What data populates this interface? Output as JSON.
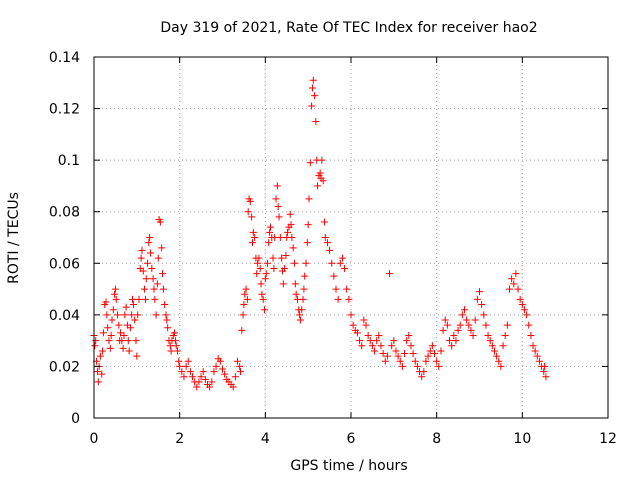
{
  "chart_data": {
    "type": "scatter",
    "title": "Day 319 of 2021, Rate Of TEC Index for receiver hao2",
    "xlabel": "GPS time / hours",
    "ylabel": "ROTI / TECUs",
    "xlim": [
      0,
      12
    ],
    "ylim": [
      0,
      0.14
    ],
    "x_ticks": [
      "0",
      "2",
      "4",
      "6",
      "8",
      "10",
      "12"
    ],
    "y_ticks": [
      "0",
      "0.02",
      "0.04",
      "0.06",
      "0.08",
      "0.1",
      "0.12",
      "0.14"
    ],
    "grid": true,
    "marker": "+",
    "marker_color": "#ff0000",
    "series": [
      {
        "x": [
          0.0,
          0.02,
          0.04,
          0.06,
          0.08,
          0.1,
          0.12,
          0.15,
          0.18,
          0.2,
          0.22,
          0.25,
          0.28,
          0.3,
          0.32,
          0.35,
          0.38,
          0.4,
          0.42,
          0.45,
          0.48,
          0.5,
          0.52,
          0.55,
          0.58,
          0.6,
          0.62,
          0.65,
          0.68,
          0.7,
          0.72,
          0.75,
          0.78,
          0.8,
          0.82,
          0.85,
          0.88,
          0.9,
          0.92,
          0.95,
          0.98,
          1.0,
          1.02,
          1.05,
          1.08,
          1.1,
          1.12,
          1.15,
          1.18,
          1.2,
          1.22,
          1.25,
          1.28,
          1.3,
          1.32,
          1.35,
          1.38,
          1.4,
          1.42,
          1.45,
          1.48,
          1.5,
          1.52,
          1.55,
          1.58,
          1.6,
          1.62,
          1.65,
          1.68,
          1.7,
          1.72,
          1.75,
          1.78,
          1.8,
          1.82,
          1.85,
          1.88,
          1.9,
          1.92,
          1.95,
          1.98,
          2.0,
          2.05,
          2.1,
          2.15,
          2.2,
          2.25,
          2.3,
          2.35,
          2.4,
          2.45,
          2.5,
          2.55,
          2.6,
          2.65,
          2.7,
          2.75,
          2.8,
          2.85,
          2.9,
          2.95,
          3.0,
          3.05,
          3.1,
          3.15,
          3.2,
          3.25,
          3.3,
          3.35,
          3.4,
          3.42,
          3.45,
          3.48,
          3.5,
          3.52,
          3.55,
          3.58,
          3.6,
          3.62,
          3.65,
          3.68,
          3.7,
          3.72,
          3.75,
          3.78,
          3.8,
          3.82,
          3.85,
          3.88,
          3.9,
          3.92,
          3.95,
          3.98,
          4.0,
          4.02,
          4.05,
          4.08,
          4.1,
          4.12,
          4.15,
          4.18,
          4.2,
          4.22,
          4.25,
          4.28,
          4.3,
          4.32,
          4.35,
          4.38,
          4.4,
          4.42,
          4.45,
          4.48,
          4.5,
          4.52,
          4.55,
          4.58,
          4.6,
          4.62,
          4.65,
          4.68,
          4.7,
          4.72,
          4.75,
          4.78,
          4.8,
          4.82,
          4.85,
          4.88,
          4.9,
          4.92,
          4.95,
          4.98,
          5.0,
          5.02,
          5.05,
          5.08,
          5.1,
          5.12,
          5.15,
          5.18,
          5.2,
          5.22,
          5.25,
          5.28,
          5.3,
          5.32,
          5.35,
          5.38,
          5.4,
          5.45,
          5.5,
          5.55,
          5.6,
          5.65,
          5.7,
          5.75,
          5.8,
          5.85,
          5.9,
          5.95,
          6.0,
          6.05,
          6.1,
          6.15,
          6.2,
          6.25,
          6.3,
          6.35,
          6.4,
          6.45,
          6.5,
          6.55,
          6.6,
          6.65,
          6.7,
          6.75,
          6.8,
          6.85,
          6.9,
          6.95,
          7.0,
          7.05,
          7.1,
          7.15,
          7.2,
          7.25,
          7.3,
          7.35,
          7.4,
          7.45,
          7.5,
          7.55,
          7.6,
          7.65,
          7.7,
          7.75,
          7.8,
          7.85,
          7.9,
          7.95,
          8.0,
          8.05,
          8.1,
          8.15,
          8.2,
          8.25,
          8.3,
          8.35,
          8.4,
          8.45,
          8.5,
          8.55,
          8.6,
          8.65,
          8.7,
          8.75,
          8.8,
          8.85,
          8.9,
          8.95,
          9.0,
          9.05,
          9.1,
          9.15,
          9.2,
          9.25,
          9.3,
          9.35,
          9.4,
          9.45,
          9.5,
          9.55,
          9.6,
          9.65,
          9.7,
          9.75,
          9.8,
          9.85,
          9.9,
          9.95,
          10.0,
          10.05,
          10.1,
          10.15,
          10.2,
          10.25,
          10.3,
          10.35,
          10.4,
          10.45,
          10.5,
          10.52,
          10.55
        ],
        "y": [
          0.032,
          0.028,
          0.03,
          0.022,
          0.018,
          0.014,
          0.02,
          0.024,
          0.017,
          0.026,
          0.033,
          0.044,
          0.045,
          0.04,
          0.035,
          0.03,
          0.027,
          0.032,
          0.038,
          0.042,
          0.048,
          0.05,
          0.046,
          0.04,
          0.036,
          0.03,
          0.033,
          0.03,
          0.027,
          0.032,
          0.04,
          0.043,
          0.036,
          0.03,
          0.026,
          0.035,
          0.04,
          0.046,
          0.044,
          0.038,
          0.03,
          0.024,
          0.04,
          0.046,
          0.058,
          0.062,
          0.065,
          0.057,
          0.05,
          0.046,
          0.054,
          0.06,
          0.068,
          0.07,
          0.064,
          0.058,
          0.054,
          0.05,
          0.046,
          0.04,
          0.052,
          0.062,
          0.077,
          0.076,
          0.066,
          0.056,
          0.05,
          0.044,
          0.04,
          0.038,
          0.035,
          0.03,
          0.028,
          0.026,
          0.03,
          0.032,
          0.033,
          0.03,
          0.028,
          0.026,
          0.022,
          0.02,
          0.018,
          0.016,
          0.02,
          0.022,
          0.018,
          0.016,
          0.014,
          0.012,
          0.014,
          0.016,
          0.018,
          0.015,
          0.013,
          0.012,
          0.014,
          0.018,
          0.02,
          0.023,
          0.022,
          0.019,
          0.017,
          0.015,
          0.014,
          0.013,
          0.012,
          0.016,
          0.022,
          0.02,
          0.018,
          0.034,
          0.04,
          0.044,
          0.048,
          0.05,
          0.046,
          0.08,
          0.085,
          0.084,
          0.078,
          0.068,
          0.072,
          0.07,
          0.062,
          0.056,
          0.06,
          0.062,
          0.058,
          0.052,
          0.048,
          0.046,
          0.042,
          0.054,
          0.056,
          0.06,
          0.068,
          0.072,
          0.074,
          0.07,
          0.062,
          0.058,
          0.07,
          0.085,
          0.09,
          0.082,
          0.078,
          0.07,
          0.062,
          0.057,
          0.052,
          0.058,
          0.063,
          0.07,
          0.072,
          0.074,
          0.079,
          0.075,
          0.07,
          0.066,
          0.06,
          0.052,
          0.048,
          0.046,
          0.042,
          0.04,
          0.038,
          0.042,
          0.046,
          0.05,
          0.055,
          0.06,
          0.068,
          0.075,
          0.085,
          0.099,
          0.121,
          0.128,
          0.131,
          0.125,
          0.115,
          0.1,
          0.09,
          0.094,
          0.095,
          0.093,
          0.1,
          0.092,
          0.076,
          0.07,
          0.068,
          0.065,
          0.06,
          0.055,
          0.05,
          0.046,
          0.06,
          0.062,
          0.058,
          0.05,
          0.046,
          0.04,
          0.036,
          0.034,
          0.033,
          0.03,
          0.028,
          0.038,
          0.036,
          0.032,
          0.03,
          0.028,
          0.026,
          0.03,
          0.032,
          0.028,
          0.025,
          0.022,
          0.024,
          0.056,
          0.028,
          0.03,
          0.026,
          0.024,
          0.022,
          0.02,
          0.025,
          0.03,
          0.032,
          0.028,
          0.025,
          0.022,
          0.02,
          0.018,
          0.016,
          0.018,
          0.022,
          0.024,
          0.026,
          0.028,
          0.025,
          0.022,
          0.02,
          0.026,
          0.034,
          0.038,
          0.036,
          0.03,
          0.028,
          0.032,
          0.03,
          0.034,
          0.036,
          0.04,
          0.042,
          0.038,
          0.036,
          0.034,
          0.032,
          0.038,
          0.046,
          0.049,
          0.044,
          0.04,
          0.036,
          0.032,
          0.03,
          0.028,
          0.026,
          0.024,
          0.022,
          0.02,
          0.028,
          0.032,
          0.036,
          0.05,
          0.054,
          0.052,
          0.056,
          0.05,
          0.046,
          0.044,
          0.042,
          0.04,
          0.036,
          0.032,
          0.028,
          0.026,
          0.024,
          0.022,
          0.02,
          0.018,
          0.02,
          0.016
        ]
      }
    ]
  }
}
